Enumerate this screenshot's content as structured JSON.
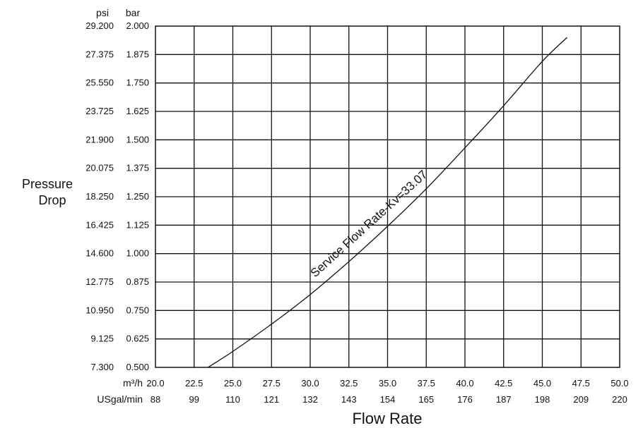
{
  "chart_data": {
    "type": "line",
    "title": "",
    "y_axis": {
      "title_line1": "Pressure",
      "title_line2": "Drop",
      "unit_primary": "psi",
      "unit_secondary": "bar",
      "ylim": [
        0.5,
        2.0
      ],
      "ticks_bar": [
        "0.500",
        "0.625",
        "0.750",
        "0.875",
        "1.000",
        "1.125",
        "1.250",
        "1.375",
        "1.500",
        "1.625",
        "1.750",
        "1.875",
        "2.000"
      ],
      "ticks_psi": [
        "7.300",
        "9.125",
        "10.950",
        "12.775",
        "14.600",
        "16.425",
        "18.250",
        "20.075",
        "21.900",
        "23.725",
        "25.550",
        "27.375",
        "29.200"
      ]
    },
    "x_axis": {
      "title": "Flow Rate",
      "unit_primary": "m³/h",
      "unit_secondary": "USgal/min",
      "xlim": [
        20.0,
        50.0
      ],
      "ticks_m3h": [
        "20.0",
        "22.5",
        "25.0",
        "27.5",
        "30.0",
        "32.5",
        "35.0",
        "37.5",
        "40.0",
        "42.5",
        "45.0",
        "47.5",
        "50.0"
      ],
      "ticks_usgal": [
        "88",
        "99",
        "110",
        "121",
        "132",
        "143",
        "154",
        "165",
        "176",
        "187",
        "198",
        "209",
        "220"
      ]
    },
    "grid": true,
    "series": [
      {
        "name": "Service Flow Rate-Kv=33.07",
        "x": [
          23.4,
          25.0,
          27.5,
          30.0,
          32.5,
          35.0,
          37.5,
          40.0,
          42.5,
          45.0,
          46.6
        ],
        "y": [
          0.5,
          0.57,
          0.69,
          0.82,
          0.965,
          1.12,
          1.285,
          1.465,
          1.65,
          1.845,
          1.95
        ]
      }
    ],
    "annotation": "Service Flow Rate-Kv=33.07"
  }
}
